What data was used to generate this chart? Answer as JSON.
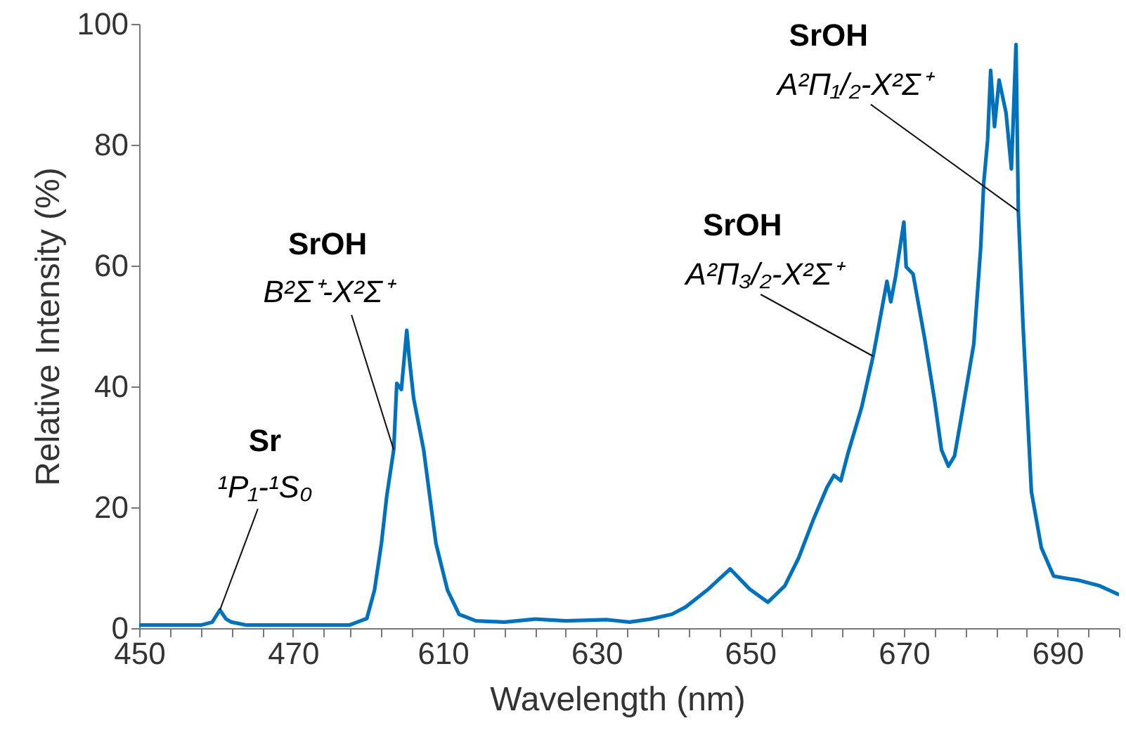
{
  "chart_data": [
    {
      "type": "line",
      "ylabel": "Relative Intensity (%)",
      "xlim": [
        450,
        476.5
      ],
      "xticks": [
        450,
        {
          "value": 454,
          "label": null
        },
        {
          "value": 458,
          "label": null
        },
        {
          "value": 462,
          "label": null
        },
        {
          "value": 466,
          "label": null
        },
        470,
        {
          "value": 474,
          "label": null
        }
      ],
      "ylim": [
        0,
        100
      ],
      "yticks": [
        0,
        20,
        40,
        60,
        80,
        100
      ],
      "x": [
        450,
        452,
        454,
        456,
        458,
        459.5,
        460.5,
        461.3,
        462,
        464,
        466,
        468,
        470,
        472,
        474,
        476.5
      ],
      "series": [
        {
          "color": "#0072bd",
          "values": [
            0.5,
            0.5,
            0.5,
            0.5,
            0.5,
            1,
            3,
            1.5,
            1,
            0.5,
            0.5,
            0.5,
            0.5,
            0.5,
            0.5,
            0.5
          ]
        }
      ],
      "annotations": [
        "Sr",
        {
          "text": "¹P₁-¹S₀",
          "x": 460.5,
          "y": 3
        }
      ]
    },
    {
      "type": "line",
      "xlabel": "Wavelength (nm)",
      "xlim": [
        597,
        698
      ],
      "xticks": [
        {
          "value": 598,
          "label": null
        },
        {
          "value": 602,
          "label": null
        },
        {
          "value": 606,
          "label": null
        },
        610,
        {
          "value": 614,
          "label": null
        },
        {
          "value": 618,
          "label": null
        },
        {
          "value": 622,
          "label": null
        },
        {
          "value": 626,
          "label": null
        },
        630,
        {
          "value": 634,
          "label": null
        },
        {
          "value": 638,
          "label": null
        },
        {
          "value": 642,
          "label": null
        },
        {
          "value": 646,
          "label": null
        },
        650,
        {
          "value": 654,
          "label": null
        },
        {
          "value": 658,
          "label": null
        },
        {
          "value": 662,
          "label": null
        },
        {
          "value": 666,
          "label": null
        },
        670,
        {
          "value": 674,
          "label": null
        },
        {
          "value": 678,
          "label": null
        },
        {
          "value": 682,
          "label": null
        },
        {
          "value": 686,
          "label": null
        },
        690,
        {
          "value": 694,
          "label": null
        },
        {
          "value": 698,
          "label": null
        }
      ],
      "ylim": [
        0,
        100
      ],
      "tick_labels": "x",
      "x": [
        597,
        597.8,
        600.1,
        601.1,
        602.0,
        602.7,
        603.6,
        604.0,
        604.6,
        605.3,
        605.6,
        606.2,
        607.5,
        609.1,
        610.6,
        612.1,
        614.3,
        618,
        622,
        626,
        631.4,
        634.3,
        637,
        639.8,
        641.6,
        644.4,
        647.4,
        649.9,
        652.3,
        654.5,
        656.3,
        658.2,
        660.0,
        660.9,
        661.8,
        662.7,
        664.5,
        666.0,
        666.7,
        667.8,
        668.3,
        668.9,
        670.0,
        670.3,
        671.2,
        672.7,
        674.0,
        674.9,
        675.8,
        676.6,
        677.6,
        679.1,
        680.0,
        680.4,
        680.9,
        681.3,
        681.8,
        682.4,
        683.3,
        684.0,
        684.6,
        684.9,
        685.5,
        686.6,
        687.9,
        689.5,
        692.8,
        695.5,
        697.9
      ],
      "series": [
        {
          "color": "#0072bd",
          "values": [
            0.5,
            0.5,
            1.6,
            6.3,
            14,
            21.9,
            29.5,
            40.5,
            39.5,
            49.3,
            45,
            38,
            29.5,
            14,
            6.3,
            2.3,
            1.2,
            1,
            1.5,
            1.2,
            1.4,
            1,
            1.5,
            2.3,
            3.5,
            6.3,
            9.8,
            6.5,
            4.3,
            7,
            11.6,
            17.9,
            23.3,
            25.3,
            24.4,
            28.8,
            36.5,
            45,
            49.8,
            57.4,
            54,
            58,
            67.2,
            59.8,
            58.6,
            48,
            37.7,
            29.5,
            26.8,
            28.5,
            35.8,
            47,
            62.9,
            73.7,
            80.7,
            92.3,
            83,
            90.7,
            85.3,
            76,
            96.6,
            69,
            50.5,
            22.6,
            13.3,
            8.6,
            7.9,
            7,
            5.6
          ]
        }
      ],
      "annotations": [
        "SrOH",
        {
          "text": "B²Σ⁺-X²Σ⁺",
          "x": 603.6,
          "y": 29.5
        },
        "SrOH",
        {
          "text": "A²Π₃/₂-X²Σ⁺",
          "x": 666.0,
          "y": 45
        },
        "SrOH",
        {
          "text": "A²Π₁/₂-X²Σ⁺",
          "x": 684.9,
          "y": 69
        }
      ]
    }
  ]
}
